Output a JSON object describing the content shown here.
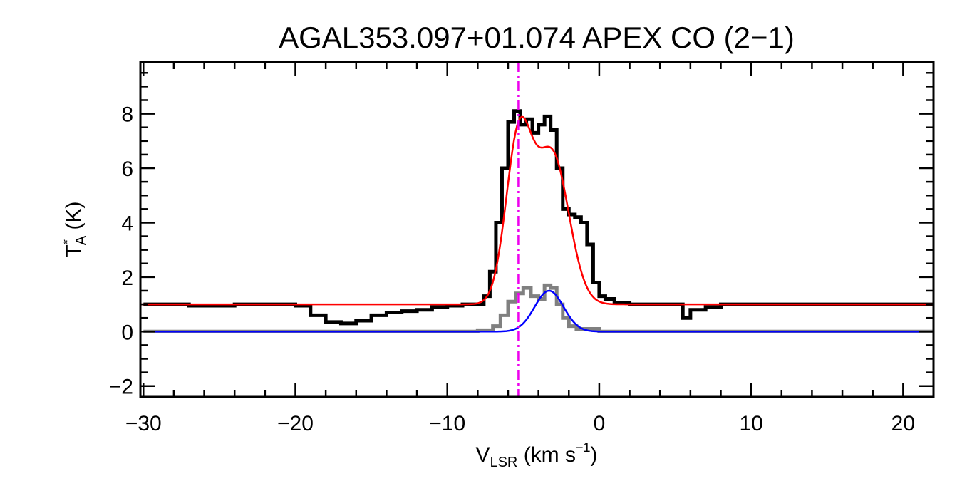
{
  "chart_data": {
    "type": "line",
    "title": "AGAL353.097+01.074  APEX CO (2−1)",
    "xlabel": {
      "main": "V",
      "sub": "LSR",
      "unit_open": " (km s",
      "sup": "−1",
      "unit_close": ")"
    },
    "ylabel": {
      "main": "T",
      "sup": "*",
      "sub": "A",
      "unit": " (K)"
    },
    "xlim": [
      -30.2,
      22
    ],
    "ylim": [
      -2.4,
      9.9
    ],
    "xticks_major": [
      -30,
      -20,
      -10,
      0,
      10,
      20
    ],
    "xtick_labels": [
      "−30",
      "−20",
      "−10",
      "0",
      "10",
      "20"
    ],
    "xticks_minor_step": 2,
    "yticks_major": [
      -2,
      0,
      2,
      4,
      6,
      8
    ],
    "ytick_labels": [
      "−2",
      "0",
      "2",
      "4",
      "6",
      "8"
    ],
    "yticks_minor_step": 0.5,
    "grid": false,
    "legend": "none",
    "marker_line": {
      "x": -5.3,
      "color": "#ee00ee",
      "style": "dash-dot"
    },
    "series": [
      {
        "role": "observed-spectrum",
        "color": "#000000",
        "style": "step",
        "points": [
          [
            -30,
            1.0
          ],
          [
            -27,
            0.95
          ],
          [
            -24,
            1.0
          ],
          [
            -22,
            1.0
          ],
          [
            -20,
            0.95
          ],
          [
            -19,
            0.6
          ],
          [
            -18,
            0.35
          ],
          [
            -17,
            0.3
          ],
          [
            -16,
            0.4
          ],
          [
            -15,
            0.6
          ],
          [
            -14,
            0.7
          ],
          [
            -13,
            0.75
          ],
          [
            -12,
            0.8
          ],
          [
            -11,
            0.9
          ],
          [
            -10,
            0.95
          ],
          [
            -9,
            1.0
          ],
          [
            -8,
            1.0
          ],
          [
            -7.6,
            1.3
          ],
          [
            -7.2,
            2.2
          ],
          [
            -6.8,
            4.0
          ],
          [
            -6.4,
            6.0
          ],
          [
            -6.0,
            7.7
          ],
          [
            -5.6,
            8.1
          ],
          [
            -5.2,
            7.6
          ],
          [
            -4.8,
            7.8
          ],
          [
            -4.4,
            7.3
          ],
          [
            -4.0,
            7.6
          ],
          [
            -3.6,
            7.9
          ],
          [
            -3.2,
            7.4
          ],
          [
            -2.8,
            6.0
          ],
          [
            -2.4,
            4.5
          ],
          [
            -2.0,
            4.3
          ],
          [
            -1.6,
            4.2
          ],
          [
            -1.2,
            4.0
          ],
          [
            -0.8,
            3.2
          ],
          [
            -0.4,
            1.8
          ],
          [
            0.0,
            1.3
          ],
          [
            0.4,
            1.2
          ],
          [
            1.0,
            1.05
          ],
          [
            2,
            1.0
          ],
          [
            5,
            1.0
          ],
          [
            5.5,
            0.5
          ],
          [
            6,
            0.8
          ],
          [
            7,
            0.9
          ],
          [
            8,
            1.0
          ],
          [
            10,
            1.0
          ],
          [
            15,
            1.0
          ],
          [
            20,
            1.0
          ],
          [
            22,
            1.0
          ]
        ]
      },
      {
        "role": "observed-residual",
        "color": "#808080",
        "style": "step",
        "points": [
          [
            -30,
            0.0
          ],
          [
            -25,
            0.0
          ],
          [
            -22,
            0.0
          ],
          [
            -20,
            0.0
          ],
          [
            -15,
            0.0
          ],
          [
            -10,
            0.0
          ],
          [
            -8,
            0.05
          ],
          [
            -7,
            0.2
          ],
          [
            -6.5,
            0.6
          ],
          [
            -6,
            1.1
          ],
          [
            -5.5,
            1.4
          ],
          [
            -5.0,
            1.6
          ],
          [
            -4.5,
            1.3
          ],
          [
            -4.0,
            1.2
          ],
          [
            -3.6,
            1.7
          ],
          [
            -3.2,
            1.6
          ],
          [
            -2.8,
            1.0
          ],
          [
            -2.4,
            0.5
          ],
          [
            -2.0,
            0.2
          ],
          [
            -1.5,
            0.1
          ],
          [
            0,
            0.0
          ],
          [
            5,
            0.0
          ],
          [
            10,
            0.0
          ],
          [
            15,
            0.0
          ],
          [
            20,
            0.0
          ],
          [
            22,
            0.0
          ]
        ]
      },
      {
        "role": "fit-total",
        "color": "#ff0000",
        "style": "smooth",
        "baseline": 1.0,
        "gaussians": [
          {
            "amp": 6.0,
            "center": -5.3,
            "sigma": 0.85
          },
          {
            "amp": 5.5,
            "center": -3.1,
            "sigma": 1.1
          }
        ]
      },
      {
        "role": "fit-component",
        "color": "#0000ff",
        "style": "smooth",
        "baseline": 0.0,
        "gaussians": [
          {
            "amp": 1.5,
            "center": -3.3,
            "sigma": 0.95
          }
        ]
      }
    ]
  }
}
